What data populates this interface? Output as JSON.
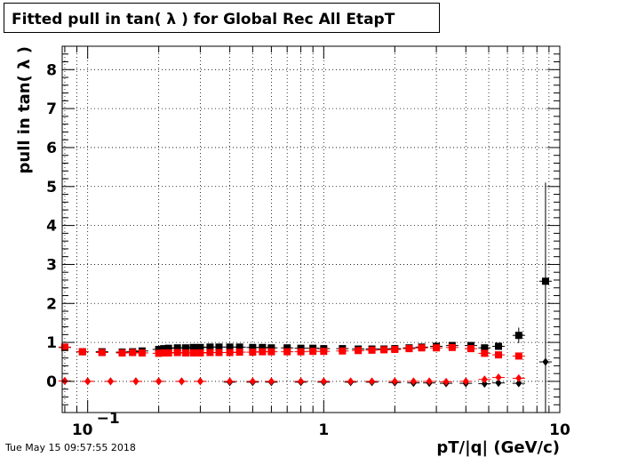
{
  "footer": "Tue May 15 09:57:55 2018",
  "chart_data": {
    "type": "scatter",
    "title": "Fitted pull in tan( λ ) for Global Rec All EtapT",
    "xlabel": "pT/|q| (GeV/c)",
    "ylabel": "pull in tan( λ )",
    "x_scale": "log",
    "xlim": [
      0.078,
      10
    ],
    "ylim": [
      -0.8,
      8.6
    ],
    "x_ticks": [
      {
        "value": 0.1,
        "label": "10",
        "exp": "−1"
      },
      {
        "value": 1,
        "label": "1",
        "exp": ""
      },
      {
        "value": 10,
        "label": "10",
        "exp": ""
      }
    ],
    "y_ticks": [
      0,
      1,
      2,
      3,
      4,
      5,
      6,
      7,
      8
    ],
    "grid": true,
    "legend": "none",
    "series": [
      {
        "color": "#000000",
        "marker": "square",
        "points": [
          {
            "x": 0.08,
            "y": 0.87
          },
          {
            "x": 0.095,
            "y": 0.76
          },
          {
            "x": 0.115,
            "y": 0.76
          },
          {
            "x": 0.14,
            "y": 0.75
          },
          {
            "x": 0.155,
            "y": 0.76
          },
          {
            "x": 0.17,
            "y": 0.78
          },
          {
            "x": 0.2,
            "y": 0.82
          },
          {
            "x": 0.21,
            "y": 0.84
          },
          {
            "x": 0.22,
            "y": 0.85
          },
          {
            "x": 0.24,
            "y": 0.86
          },
          {
            "x": 0.26,
            "y": 0.86
          },
          {
            "x": 0.28,
            "y": 0.87
          },
          {
            "x": 0.3,
            "y": 0.87
          },
          {
            "x": 0.33,
            "y": 0.88
          },
          {
            "x": 0.36,
            "y": 0.88
          },
          {
            "x": 0.4,
            "y": 0.88
          },
          {
            "x": 0.44,
            "y": 0.88
          },
          {
            "x": 0.5,
            "y": 0.87
          },
          {
            "x": 0.55,
            "y": 0.87
          },
          {
            "x": 0.6,
            "y": 0.86
          },
          {
            "x": 0.7,
            "y": 0.86
          },
          {
            "x": 0.8,
            "y": 0.85
          },
          {
            "x": 0.9,
            "y": 0.85
          },
          {
            "x": 1.0,
            "y": 0.84
          },
          {
            "x": 1.2,
            "y": 0.84
          },
          {
            "x": 1.4,
            "y": 0.83
          },
          {
            "x": 1.6,
            "y": 0.83
          },
          {
            "x": 1.8,
            "y": 0.83
          },
          {
            "x": 2.0,
            "y": 0.84
          },
          {
            "x": 2.3,
            "y": 0.86
          },
          {
            "x": 2.6,
            "y": 0.88
          },
          {
            "x": 3.0,
            "y": 0.9
          },
          {
            "x": 3.5,
            "y": 0.92
          },
          {
            "x": 4.2,
            "y": 0.92
          },
          {
            "x": 4.8,
            "y": 0.86
          },
          {
            "x": 5.5,
            "y": 0.9
          },
          {
            "x": 6.7,
            "y": 1.18,
            "err": 0.2
          },
          {
            "x": 8.7,
            "y": 2.57
          }
        ]
      },
      {
        "color": "#ff0000",
        "marker": "square",
        "points": [
          {
            "x": 0.08,
            "y": 0.88
          },
          {
            "x": 0.095,
            "y": 0.76
          },
          {
            "x": 0.115,
            "y": 0.74
          },
          {
            "x": 0.14,
            "y": 0.73
          },
          {
            "x": 0.155,
            "y": 0.74
          },
          {
            "x": 0.17,
            "y": 0.73
          },
          {
            "x": 0.2,
            "y": 0.72
          },
          {
            "x": 0.21,
            "y": 0.73
          },
          {
            "x": 0.22,
            "y": 0.73
          },
          {
            "x": 0.24,
            "y": 0.74
          },
          {
            "x": 0.26,
            "y": 0.73
          },
          {
            "x": 0.28,
            "y": 0.73
          },
          {
            "x": 0.3,
            "y": 0.73
          },
          {
            "x": 0.33,
            "y": 0.74
          },
          {
            "x": 0.36,
            "y": 0.74
          },
          {
            "x": 0.4,
            "y": 0.74
          },
          {
            "x": 0.44,
            "y": 0.75
          },
          {
            "x": 0.5,
            "y": 0.75
          },
          {
            "x": 0.55,
            "y": 0.76
          },
          {
            "x": 0.6,
            "y": 0.76
          },
          {
            "x": 0.7,
            "y": 0.76
          },
          {
            "x": 0.8,
            "y": 0.76
          },
          {
            "x": 0.9,
            "y": 0.77
          },
          {
            "x": 1.0,
            "y": 0.77
          },
          {
            "x": 1.2,
            "y": 0.78
          },
          {
            "x": 1.4,
            "y": 0.79
          },
          {
            "x": 1.6,
            "y": 0.8
          },
          {
            "x": 1.8,
            "y": 0.81
          },
          {
            "x": 2.0,
            "y": 0.82
          },
          {
            "x": 2.3,
            "y": 0.84
          },
          {
            "x": 2.6,
            "y": 0.86
          },
          {
            "x": 3.0,
            "y": 0.86
          },
          {
            "x": 3.5,
            "y": 0.87
          },
          {
            "x": 4.2,
            "y": 0.84
          },
          {
            "x": 4.8,
            "y": 0.72
          },
          {
            "x": 5.5,
            "y": 0.68
          },
          {
            "x": 6.7,
            "y": 0.65
          }
        ]
      },
      {
        "color": "#000000",
        "marker": "diamond",
        "points": [
          {
            "x": 0.08,
            "y": 0.01
          },
          {
            "x": 0.1,
            "y": 0.0
          },
          {
            "x": 0.125,
            "y": 0.0
          },
          {
            "x": 0.16,
            "y": 0.0
          },
          {
            "x": 0.2,
            "y": 0.0
          },
          {
            "x": 0.25,
            "y": 0.0
          },
          {
            "x": 0.3,
            "y": 0.0
          },
          {
            "x": 0.4,
            "y": -0.02
          },
          {
            "x": 0.5,
            "y": -0.02
          },
          {
            "x": 0.6,
            "y": -0.02
          },
          {
            "x": 0.8,
            "y": -0.02
          },
          {
            "x": 1.0,
            "y": -0.02
          },
          {
            "x": 1.3,
            "y": -0.02
          },
          {
            "x": 1.6,
            "y": -0.02
          },
          {
            "x": 2.0,
            "y": -0.03
          },
          {
            "x": 2.4,
            "y": -0.04
          },
          {
            "x": 2.8,
            "y": -0.04
          },
          {
            "x": 3.3,
            "y": -0.05
          },
          {
            "x": 4.0,
            "y": -0.05
          },
          {
            "x": 4.8,
            "y": -0.06
          },
          {
            "x": 5.5,
            "y": -0.04
          },
          {
            "x": 6.7,
            "y": -0.05
          },
          {
            "x": 8.7,
            "y": 0.5,
            "err": 4.6
          }
        ]
      },
      {
        "color": "#ff0000",
        "marker": "diamond",
        "points": [
          {
            "x": 0.08,
            "y": 0.01
          },
          {
            "x": 0.1,
            "y": 0.0
          },
          {
            "x": 0.125,
            "y": 0.0
          },
          {
            "x": 0.16,
            "y": 0.0
          },
          {
            "x": 0.2,
            "y": 0.0
          },
          {
            "x": 0.25,
            "y": 0.0
          },
          {
            "x": 0.3,
            "y": 0.0
          },
          {
            "x": 0.4,
            "y": 0.0
          },
          {
            "x": 0.5,
            "y": 0.0
          },
          {
            "x": 0.6,
            "y": 0.0
          },
          {
            "x": 0.8,
            "y": 0.0
          },
          {
            "x": 1.0,
            "y": 0.0
          },
          {
            "x": 1.3,
            "y": 0.0
          },
          {
            "x": 1.6,
            "y": 0.0
          },
          {
            "x": 2.0,
            "y": 0.0
          },
          {
            "x": 2.4,
            "y": 0.0
          },
          {
            "x": 2.8,
            "y": 0.0
          },
          {
            "x": 3.3,
            "y": -0.01
          },
          {
            "x": 4.0,
            "y": 0.0
          },
          {
            "x": 4.8,
            "y": 0.05
          },
          {
            "x": 5.5,
            "y": 0.1
          },
          {
            "x": 6.7,
            "y": 0.08
          }
        ]
      }
    ]
  }
}
